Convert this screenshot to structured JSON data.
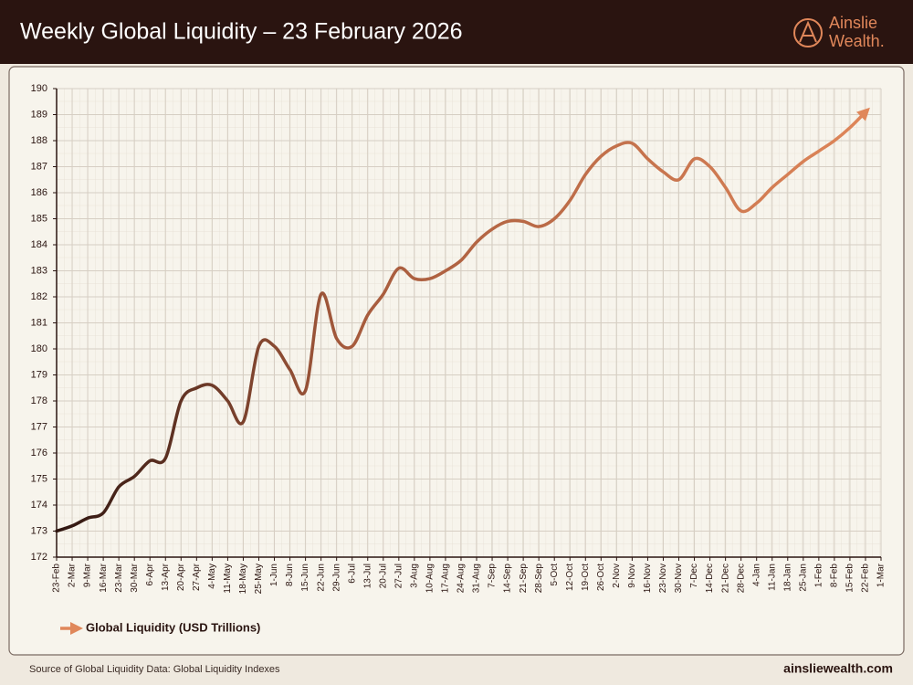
{
  "chart_data": {
    "type": "line",
    "title": "Weekly Global Liquidity – 23 February 2026",
    "categories": [
      "23-Feb",
      "2-Mar",
      "9-Mar",
      "16-Mar",
      "23-Mar",
      "30-Mar",
      "6-Apr",
      "13-Apr",
      "20-Apr",
      "27-Apr",
      "4-May",
      "11-May",
      "18-May",
      "25-May",
      "1-Jun",
      "8-Jun",
      "15-Jun",
      "22-Jun",
      "29-Jun",
      "6-Jul",
      "13-Jul",
      "20-Jul",
      "27-Jul",
      "3-Aug",
      "10-Aug",
      "17-Aug",
      "24-Aug",
      "31-Aug",
      "7-Sep",
      "14-Sep",
      "21-Sep",
      "28-Sep",
      "5-Oct",
      "12-Oct",
      "19-Oct",
      "26-Oct",
      "2-Nov",
      "9-Nov",
      "16-Nov",
      "23-Nov",
      "30-Nov",
      "7-Dec",
      "14-Dec",
      "21-Dec",
      "28-Dec",
      "4-Jan",
      "11-Jan",
      "18-Jan",
      "25-Jan",
      "1-Feb",
      "8-Feb",
      "15-Feb",
      "22-Feb",
      "1-Mar"
    ],
    "series": [
      {
        "name": "Global Liquidity (USD Trillions)",
        "color": "#e0875a",
        "values": [
          173.0,
          173.2,
          173.5,
          173.7,
          174.7,
          175.1,
          175.7,
          175.8,
          178.0,
          178.5,
          178.6,
          178.0,
          177.2,
          180.1,
          180.1,
          179.2,
          178.4,
          182.1,
          180.4,
          180.1,
          181.3,
          182.1,
          183.1,
          182.7,
          182.7,
          183.0,
          183.4,
          184.1,
          184.6,
          184.9,
          184.9,
          184.7,
          185.0,
          185.7,
          186.7,
          187.4,
          187.8,
          187.9,
          187.3,
          186.8,
          186.5,
          187.3,
          187.0,
          186.2,
          185.3,
          185.6,
          186.2,
          186.7,
          187.2,
          187.6,
          188.0,
          188.5,
          189.1,
          null
        ]
      }
    ],
    "ylim": [
      172,
      190
    ],
    "yticks": [
      172,
      173,
      174,
      175,
      176,
      177,
      178,
      179,
      180,
      181,
      182,
      183,
      184,
      185,
      186,
      187,
      188,
      189,
      190
    ],
    "grid": true
  },
  "logo": {
    "line1": "Ainslie",
    "line2": "Wealth."
  },
  "footer": {
    "source": "Source of Global Liquidity Data: Global Liquidity Indexes",
    "website": "ainsliewealth.com"
  }
}
